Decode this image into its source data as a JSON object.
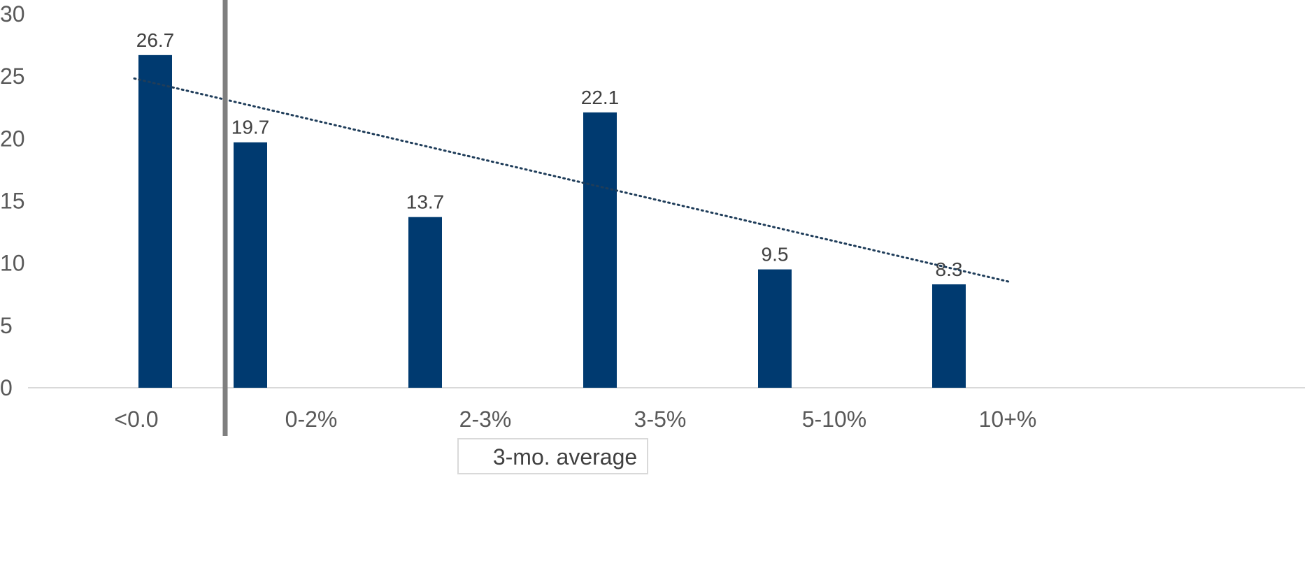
{
  "chart_data": {
    "type": "bar",
    "categories": [
      "<0.0",
      "0-2%",
      "2-3%",
      "3-5%",
      "5-10%",
      "10+%"
    ],
    "values": [
      26.7,
      19.7,
      13.7,
      22.1,
      9.5,
      8.3
    ],
    "ylim": [
      0,
      30
    ],
    "yticks": [
      0,
      5,
      10,
      15,
      20,
      25,
      30
    ],
    "trendline": {
      "style": "dotted",
      "type": "linear"
    },
    "vertical_marker": "between <0.0 and 0-2%",
    "legend": {
      "label": "3-mo. average",
      "placement": "bottom"
    },
    "colors": {
      "bar": "#003A70",
      "trendline": "#1F3D5A",
      "marker": "#7F7F7F",
      "axis": "#D9D9D9"
    },
    "grid": false
  }
}
